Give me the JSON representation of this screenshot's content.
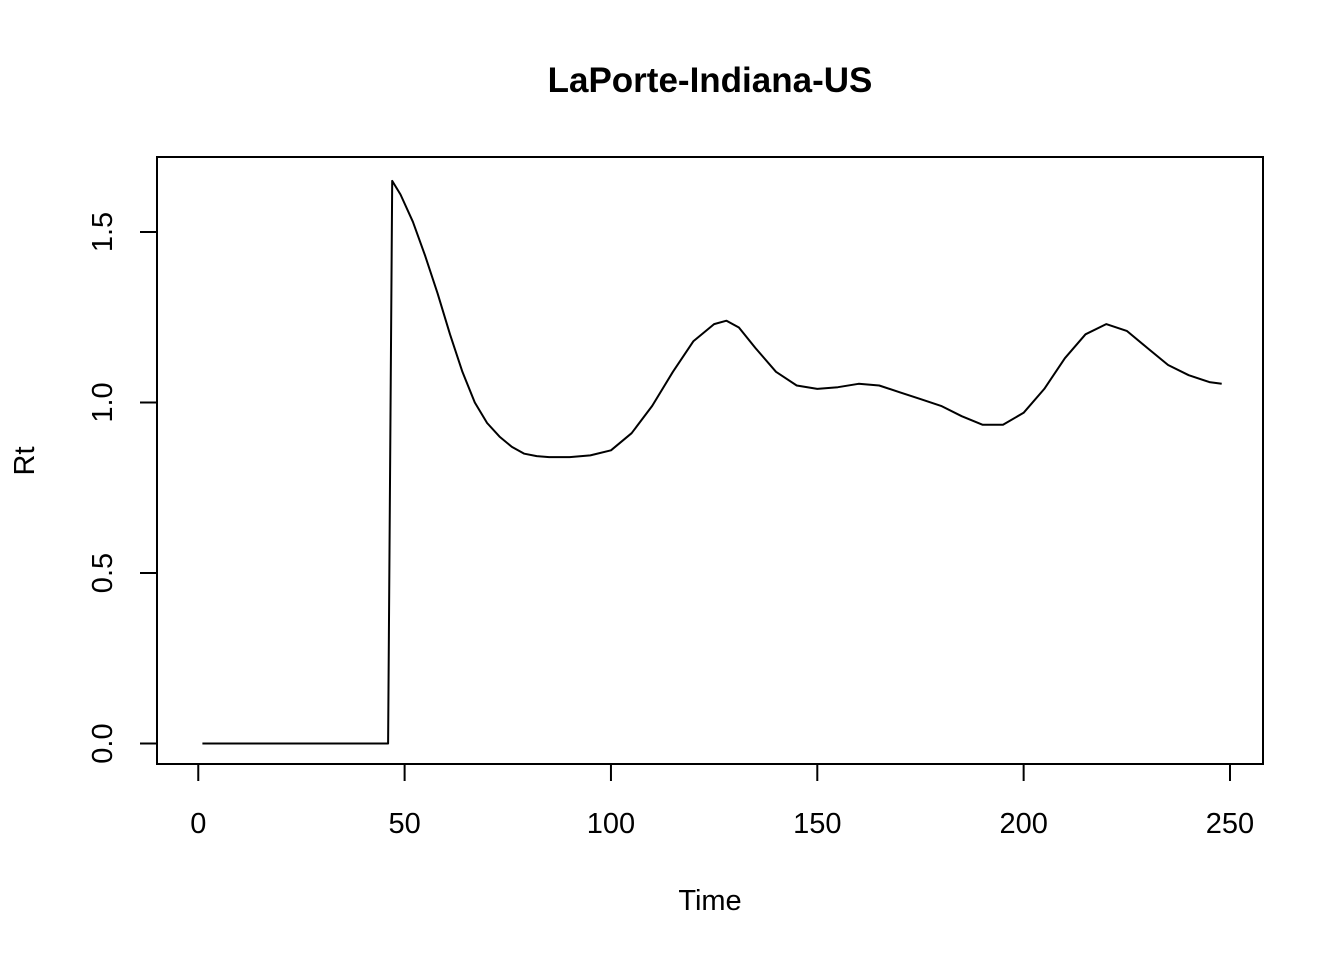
{
  "chart_data": {
    "type": "line",
    "title": "LaPorte-Indiana-US",
    "xlabel": "Time",
    "ylabel": "Rt",
    "xlim": [
      -10,
      258
    ],
    "ylim": [
      -0.06,
      1.72
    ],
    "x_ticks": [
      0,
      50,
      100,
      150,
      200,
      250
    ],
    "y_ticks": [
      0.0,
      0.5,
      1.0,
      1.5
    ],
    "x_tick_labels": [
      "0",
      "50",
      "100",
      "150",
      "200",
      "250"
    ],
    "y_tick_labels": [
      "0.0",
      "0.5",
      "1.0",
      "1.5"
    ],
    "grid": false,
    "line_color": "#000000",
    "series": [
      {
        "x": [
          1,
          10,
          20,
          30,
          40,
          46,
          47,
          49,
          52,
          55,
          58,
          61,
          64,
          67,
          70,
          73,
          76,
          79,
          82,
          85,
          90,
          95,
          100,
          105,
          110,
          115,
          120,
          125,
          128,
          131,
          135,
          140,
          145,
          150,
          155,
          160,
          165,
          170,
          175,
          180,
          185,
          190,
          195,
          200,
          205,
          210,
          215,
          220,
          225,
          230,
          235,
          240,
          245,
          248
        ],
        "y": [
          0.0,
          0.0,
          0.0,
          0.0,
          0.0,
          0.0,
          1.65,
          1.61,
          1.53,
          1.43,
          1.32,
          1.2,
          1.09,
          1.0,
          0.94,
          0.9,
          0.87,
          0.85,
          0.843,
          0.84,
          0.84,
          0.845,
          0.86,
          0.91,
          0.99,
          1.09,
          1.18,
          1.23,
          1.24,
          1.22,
          1.16,
          1.09,
          1.05,
          1.04,
          1.045,
          1.055,
          1.05,
          1.03,
          1.01,
          0.99,
          0.96,
          0.935,
          0.935,
          0.97,
          1.04,
          1.13,
          1.2,
          1.23,
          1.21,
          1.16,
          1.11,
          1.08,
          1.06,
          1.055
        ]
      }
    ]
  }
}
